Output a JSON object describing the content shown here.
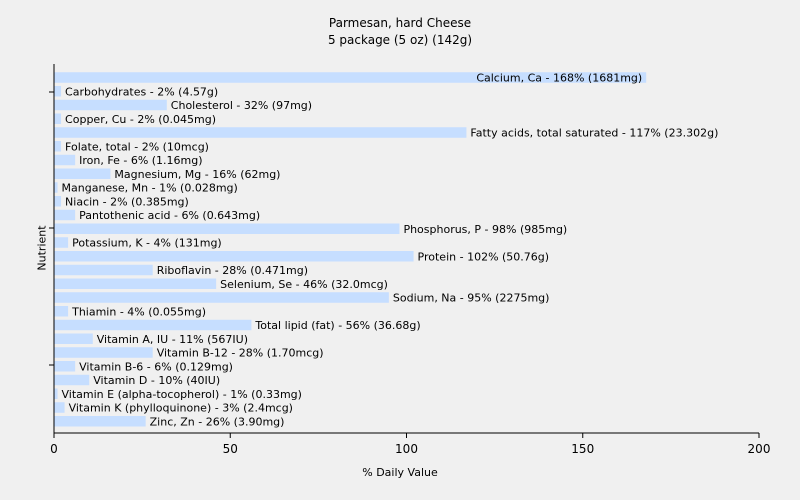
{
  "chart_data": {
    "type": "bar",
    "orientation": "horizontal",
    "title": "Parmesan, hard Cheese",
    "subtitle": "5 package (5 oz) (142g)",
    "xlabel": "% Daily Value",
    "ylabel": "Nutrient",
    "xlim": [
      0,
      200
    ],
    "xticks": [
      0,
      50,
      100,
      150,
      200
    ],
    "grid": false,
    "bar_color": "#c6deff",
    "categories": [
      "Calcium, Ca",
      "Carbohydrates",
      "Cholesterol",
      "Copper, Cu",
      "Fatty acids, total saturated",
      "Folate, total",
      "Iron, Fe",
      "Magnesium, Mg",
      "Manganese, Mn",
      "Niacin",
      "Pantothenic acid",
      "Phosphorus, P",
      "Potassium, K",
      "Protein",
      "Riboflavin",
      "Selenium, Se",
      "Sodium, Na",
      "Thiamin",
      "Total lipid (fat)",
      "Vitamin A, IU",
      "Vitamin B-12",
      "Vitamin B-6",
      "Vitamin D",
      "Vitamin E (alpha-tocopherol)",
      "Vitamin K (phylloquinone)",
      "Zinc, Zn"
    ],
    "values": [
      168,
      2,
      32,
      2,
      117,
      2,
      6,
      16,
      1,
      2,
      6,
      98,
      4,
      102,
      28,
      46,
      95,
      4,
      56,
      11,
      28,
      6,
      10,
      1,
      3,
      26
    ],
    "labels": [
      "Calcium, Ca - 168% (1681mg)",
      "Carbohydrates - 2% (4.57g)",
      "Cholesterol - 32% (97mg)",
      "Copper, Cu - 2% (0.045mg)",
      "Fatty acids, total saturated - 117% (23.302g)",
      "Folate, total - 2% (10mcg)",
      "Iron, Fe - 6% (1.16mg)",
      "Magnesium, Mg - 16% (62mg)",
      "Manganese, Mn - 1% (0.028mg)",
      "Niacin - 2% (0.385mg)",
      "Pantothenic acid - 6% (0.643mg)",
      "Phosphorus, P - 98% (985mg)",
      "Potassium, K - 4% (131mg)",
      "Protein - 102% (50.76g)",
      "Riboflavin - 28% (0.471mg)",
      "Selenium, Se - 46% (32.0mcg)",
      "Sodium, Na - 95% (2275mg)",
      "Thiamin - 4% (0.055mg)",
      "Total lipid (fat) - 56% (36.68g)",
      "Vitamin A, IU - 11% (567IU)",
      "Vitamin B-12 - 28% (1.70mcg)",
      "Vitamin B-6 - 6% (0.129mg)",
      "Vitamin D - 10% (40IU)",
      "Vitamin E (alpha-tocopherol) - 1% (0.33mg)",
      "Vitamin K (phylloquinone) - 3% (2.4mcg)",
      "Zinc, Zn - 26% (3.90mg)"
    ]
  }
}
